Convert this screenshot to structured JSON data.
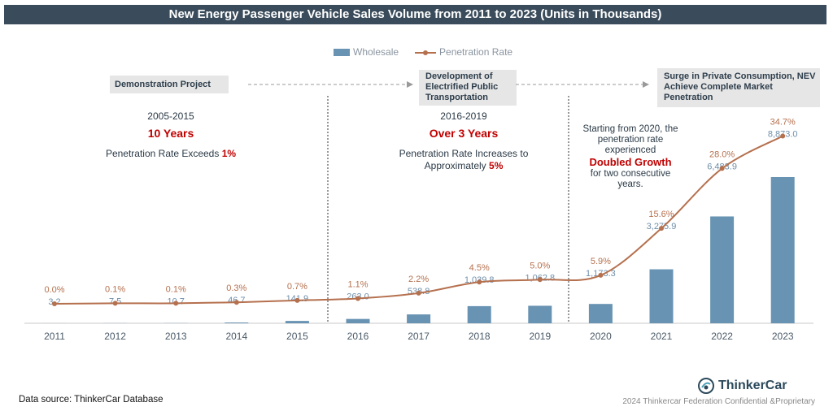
{
  "title": "New Energy Passenger Vehicle Sales Volume from 2011 to 2023 (Units in Thousands)",
  "legend": {
    "bar_label": "Wholesale",
    "line_label": "Penetration Rate"
  },
  "phases": [
    {
      "box": "Demonstration Project",
      "period": "2005-2015",
      "duration": "10 Years",
      "note_prefix": "Penetration Rate Exceeds ",
      "note_value": "1%",
      "note_suffix": ""
    },
    {
      "box": "Development of Electrified Public Transportation",
      "period": "2016-2019",
      "duration": "Over 3 Years",
      "note_prefix": "Penetration Rate Increases to Approximately ",
      "note_value": "5%",
      "note_suffix": ""
    },
    {
      "box": "Surge in Private Consumption, NEV Achieve Complete Market Penetration"
    }
  ],
  "growth_note": {
    "line1": "Starting from 2020, the penetration rate experienced",
    "highlight": "Doubled Growth",
    "line2": "for two consecutive years."
  },
  "chart_data": {
    "type": "bar",
    "categories": [
      "2011",
      "2012",
      "2013",
      "2014",
      "2015",
      "2016",
      "2017",
      "2018",
      "2019",
      "2020",
      "2021",
      "2022",
      "2023"
    ],
    "series": [
      {
        "name": "Wholesale",
        "type": "bar",
        "values": [
          3.2,
          7.5,
          10.7,
          46.7,
          141.9,
          263.0,
          538.8,
          1039.8,
          1062.8,
          1173.3,
          3275.9,
          6483.9,
          8873.0
        ],
        "labels": [
          "3.2",
          "7.5",
          "10.7",
          "46.7",
          "141.9",
          "263.0",
          "538.8",
          "1,039.8",
          "1,062.8",
          "1,173.3",
          "3,275.9",
          "6,483.9",
          "8,873.0"
        ]
      },
      {
        "name": "Penetration Rate",
        "type": "line",
        "values": [
          0.0,
          0.1,
          0.1,
          0.3,
          0.7,
          1.1,
          2.2,
          4.5,
          5.0,
          5.9,
          15.6,
          28.0,
          34.7
        ],
        "labels": [
          "0.0%",
          "0.1%",
          "0.1%",
          "0.3%",
          "0.7%",
          "1.1%",
          "2.2%",
          "4.5%",
          "5.0%",
          "5.9%",
          "15.6%",
          "28.0%",
          "34.7%"
        ]
      }
    ],
    "colors": {
      "bar": "#6893b2",
      "line": "#b5704e",
      "bar_label": "#6f8ea8",
      "line_label": "#b5704e"
    }
  },
  "footer": {
    "source": "Data source: ThinkerCar Database",
    "brand": "ThinkerCar",
    "copyright": "2024 Thinkercar Federation Confidential &Proprietary"
  }
}
